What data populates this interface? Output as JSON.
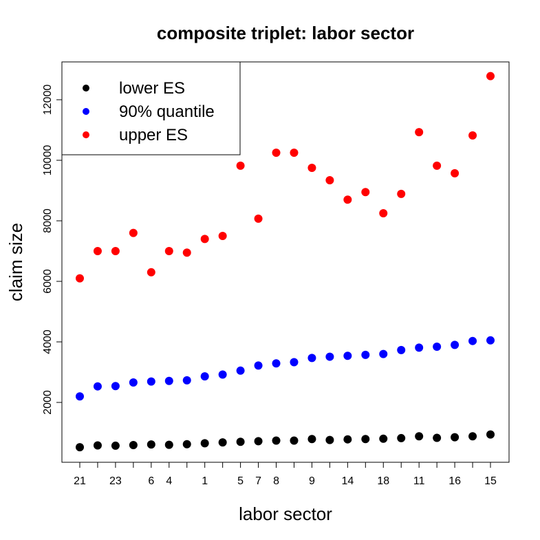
{
  "chart_data": {
    "type": "scatter",
    "title": "composite triplet: labor sector",
    "x_label": "labor sector",
    "y_label": "claim size",
    "categories": [
      "21",
      null,
      "23",
      null,
      "6",
      "4",
      null,
      "1",
      null,
      "5",
      "7",
      "8",
      null,
      "9",
      null,
      "14",
      null,
      "18",
      null,
      "11",
      null,
      "16",
      null,
      "15"
    ],
    "series": [
      {
        "name": "lower ES",
        "color": "#000000",
        "values": [
          520,
          580,
          570,
          590,
          610,
          600,
          620,
          650,
          680,
          700,
          720,
          740,
          740,
          790,
          760,
          780,
          790,
          800,
          820,
          880,
          830,
          850,
          880,
          940
        ]
      },
      {
        "name": "90% quantile",
        "color": "#0000ff",
        "values": [
          2200,
          2530,
          2540,
          2660,
          2690,
          2710,
          2730,
          2860,
          2920,
          3050,
          3220,
          3290,
          3330,
          3470,
          3510,
          3540,
          3570,
          3600,
          3730,
          3810,
          3840,
          3900,
          4030,
          4050
        ]
      },
      {
        "name": "upper ES",
        "color": "#ff0000",
        "values": [
          6100,
          7000,
          7000,
          7600,
          6300,
          7000,
          6950,
          7400,
          7500,
          9820,
          8070,
          10250,
          10250,
          9750,
          9340,
          8700,
          8950,
          8250,
          8890,
          10930,
          9820,
          9570,
          10820,
          12780
        ]
      }
    ],
    "ylim": [
      23,
      13250
    ],
    "yticks": [
      2000,
      4000,
      6000,
      8000,
      10000,
      12000
    ],
    "legend": "topleft"
  }
}
